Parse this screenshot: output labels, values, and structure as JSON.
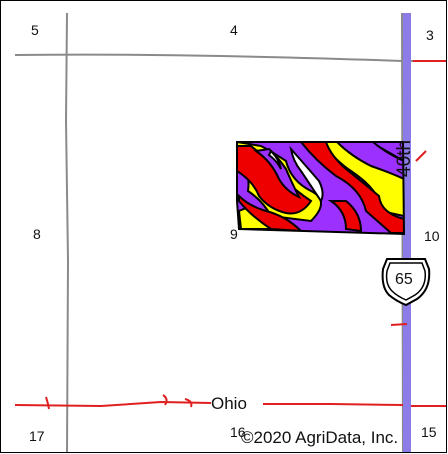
{
  "map": {
    "sections": [
      "5",
      "4",
      "3",
      "8",
      "9",
      "10",
      "17",
      "16",
      "15"
    ],
    "roads": {
      "vertical_label": "40th",
      "horizontal_label": "Ohio",
      "highway_shield": "65"
    },
    "copyright": "©2020 AgriData, Inc.",
    "colors": {
      "field_purple": "#9b30ff",
      "field_red": "#ee0000",
      "field_yellow": "#ffff00",
      "road_red": "#e02020",
      "highway_blue": "#8c7ce8",
      "section_line": "#888888"
    }
  }
}
